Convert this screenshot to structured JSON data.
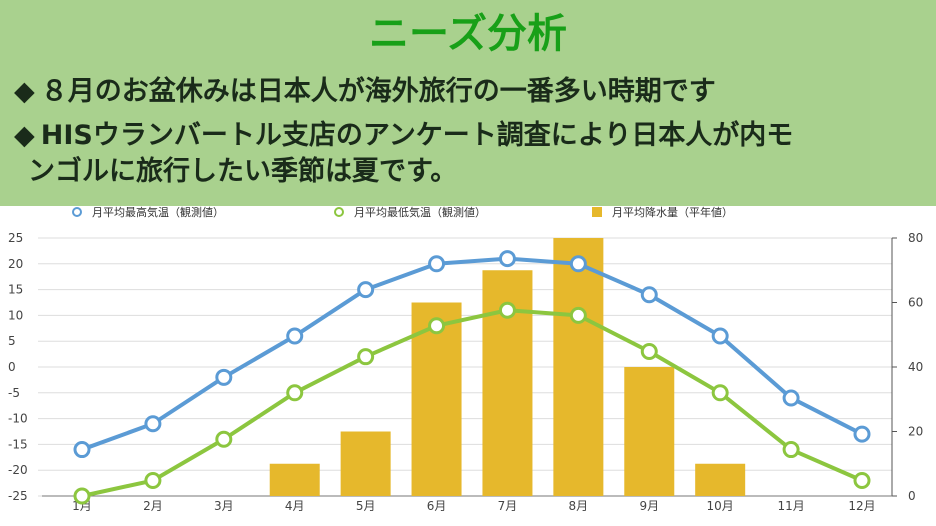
{
  "slide": {
    "title": "ニーズ分析",
    "bullets": [
      {
        "marker": "◆",
        "text": "８月のお盆休みは日本人が海外旅行の一番多い時期です"
      },
      {
        "marker": "◆",
        "text": "HISウランバートル支店のアンケート調査により日本人が内モ",
        "continuation": "ンゴルに旅行したい季節は夏です。"
      }
    ]
  },
  "colors": {
    "header_bg": "#a9d18e",
    "title": "#18a018",
    "high_temp": "#5b9bd5",
    "low_temp": "#8cc63f",
    "precip": "#e6b82c"
  },
  "chart_data": {
    "type": "bar+line",
    "categories": [
      "1月",
      "2月",
      "3月",
      "4月",
      "5月",
      "6月",
      "7月",
      "8月",
      "9月",
      "10月",
      "11月",
      "12月"
    ],
    "series": [
      {
        "name": "月平均最高気温（観測値）",
        "type": "line",
        "axis": "left",
        "values": [
          -16,
          -11,
          -2,
          6,
          15,
          20,
          21,
          20,
          14,
          6,
          -6,
          -13
        ]
      },
      {
        "name": "月平均最低気温（観測値）",
        "type": "line",
        "axis": "left",
        "values": [
          -25,
          -22,
          -14,
          -5,
          2,
          8,
          11,
          10,
          3,
          -5,
          -16,
          -22
        ]
      },
      {
        "name": "月平均降水量（平年値）",
        "type": "bar",
        "axis": "right",
        "values": [
          0,
          0,
          0,
          10,
          20,
          60,
          70,
          80,
          40,
          10,
          0,
          0
        ]
      }
    ],
    "y_left": {
      "ticks": [
        "25",
        "20",
        "15",
        "10",
        "5",
        "0",
        "-5",
        "-10",
        "-15",
        "-20",
        "-25"
      ],
      "ylim": [
        -25,
        25
      ]
    },
    "y_right": {
      "ticks": [
        "80",
        "60",
        "40",
        "20",
        "0"
      ],
      "ylim": [
        0,
        80
      ]
    },
    "grid": true,
    "legend_position": "top"
  }
}
